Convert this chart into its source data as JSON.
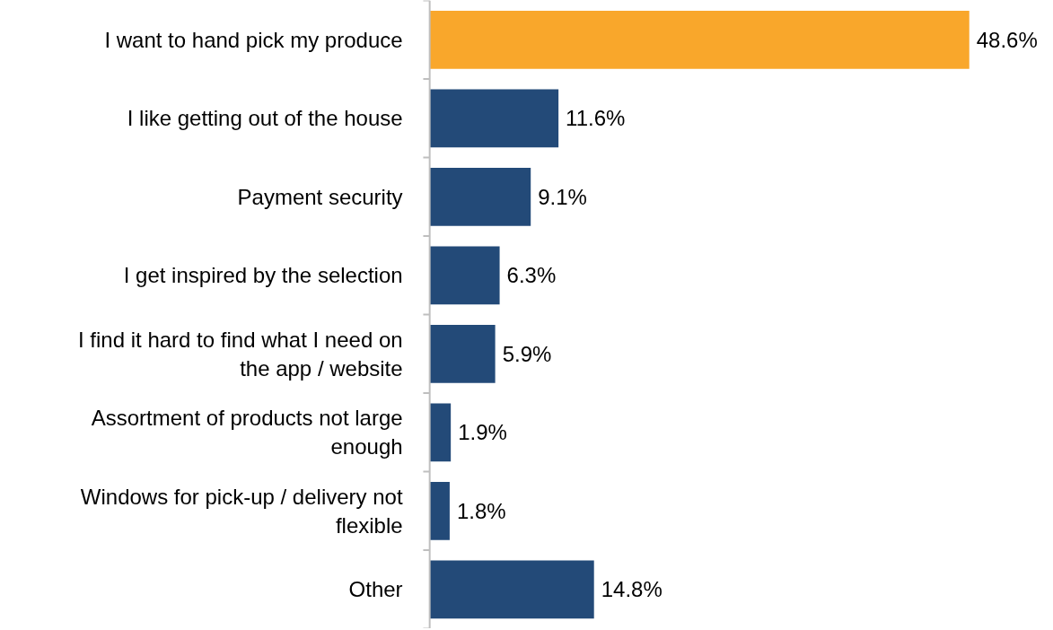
{
  "chart_data": {
    "type": "bar",
    "orientation": "horizontal",
    "categories": [
      "I want to hand pick my produce",
      "I like getting out of the house",
      "Payment security",
      "I get inspired by the selection",
      "I find it hard to find what I need on the app / website",
      "Assortment of products not large enough",
      "Windows for pick-up / delivery not flexible",
      "Other"
    ],
    "values": [
      48.6,
      11.6,
      9.1,
      6.3,
      5.9,
      1.9,
      1.8,
      14.8
    ],
    "colors": [
      "#f9a72b",
      "#234a78",
      "#234a78",
      "#234a78",
      "#234a78",
      "#234a78",
      "#234a78",
      "#234a78"
    ],
    "value_labels": [
      "48.6%",
      "11.6%",
      "9.1%",
      "6.3%",
      "5.9%",
      "1.9%",
      "1.8%",
      "14.8%"
    ],
    "grid": false
  }
}
